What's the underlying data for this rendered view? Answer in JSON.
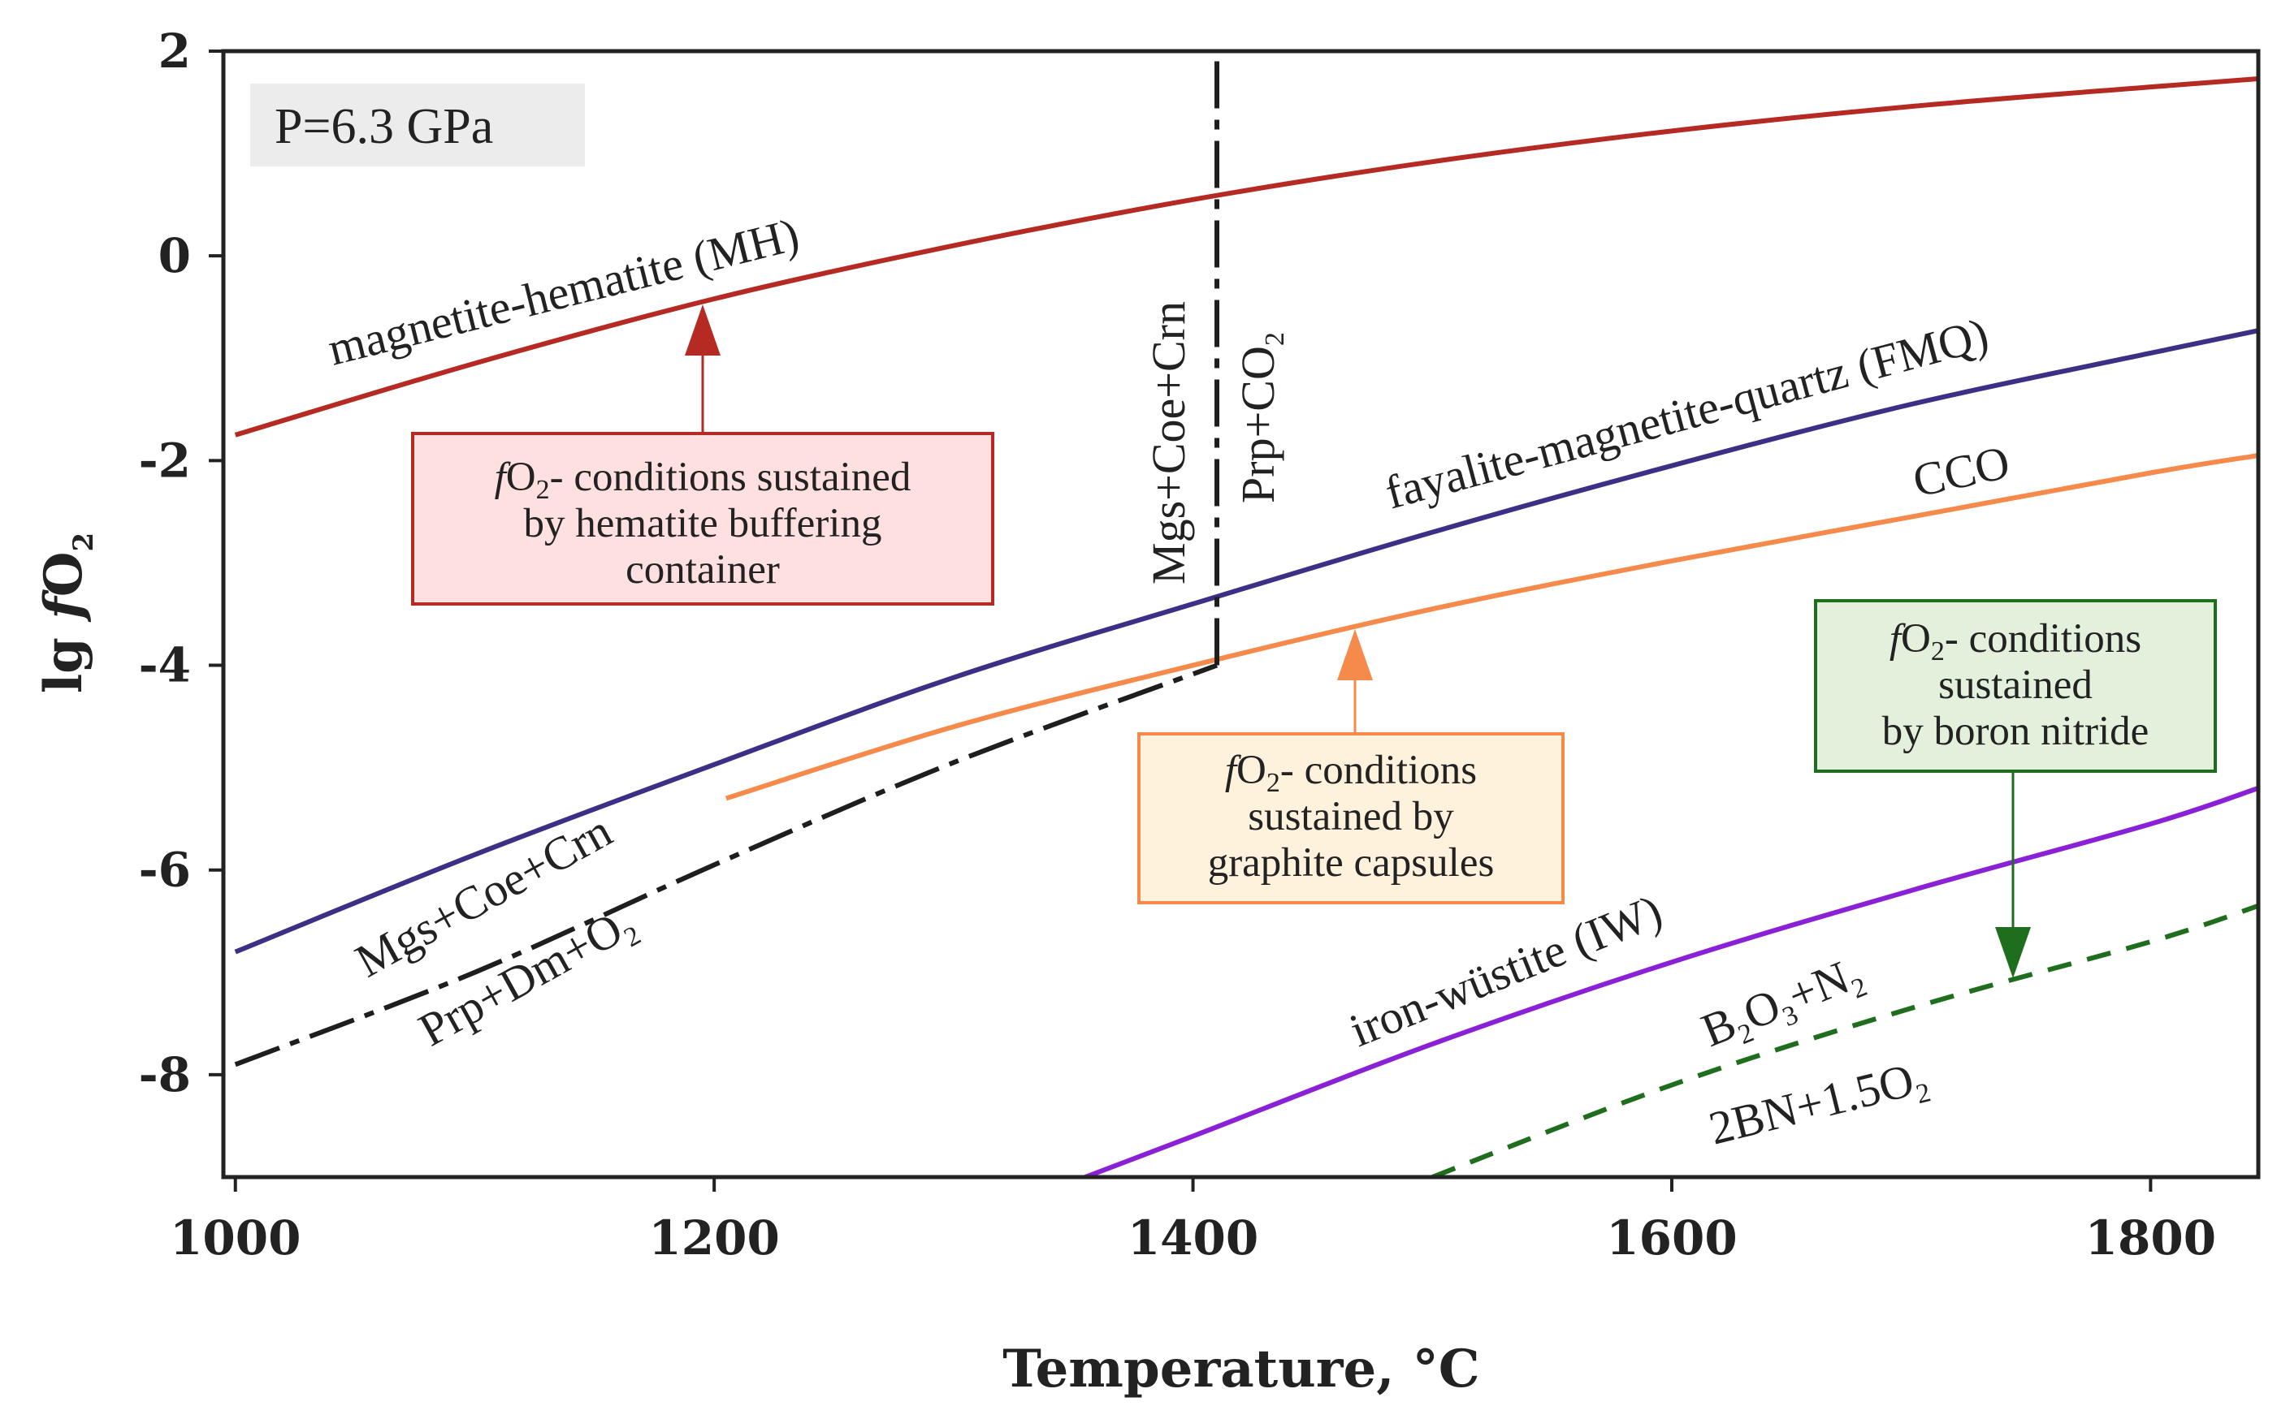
{
  "chart_data": {
    "type": "line",
    "xlabel": "Temperature, °C",
    "ylabel_prefix": "lg ",
    "ylabel_f": "f",
    "ylabel_o": "O",
    "ylabel_sub": "2",
    "xlim": [
      995,
      1845
    ],
    "ylim": [
      -9,
      2
    ],
    "xticks": [
      1000,
      1200,
      1400,
      1600,
      1800
    ],
    "yticks": [
      2,
      0,
      -2,
      -4,
      -6,
      -8
    ],
    "pressure_label": "P=6.3 GPa",
    "colors": {
      "MH": "#b52a22",
      "FMQ": "#3b2f86",
      "CCO": "#f58a4b",
      "IW": "#8a21d6",
      "BN": "#1e6e1e",
      "reaction": "#1e1e1e"
    },
    "series": [
      {
        "key": "MH",
        "name": "magnetite-hematite (MH)",
        "x": [
          1000,
          1100,
          1200,
          1300,
          1400,
          1500,
          1600,
          1700,
          1800,
          1845
        ],
        "y": [
          -1.75,
          -1.05,
          -0.42,
          0.1,
          0.55,
          0.92,
          1.22,
          1.46,
          1.65,
          1.73
        ]
      },
      {
        "key": "FMQ",
        "name": "fayalite-magnetite-quartz (FMQ)",
        "x": [
          1000,
          1100,
          1200,
          1300,
          1400,
          1500,
          1600,
          1700,
          1800,
          1845
        ],
        "y": [
          -6.8,
          -5.85,
          -4.97,
          -4.12,
          -3.4,
          -2.7,
          -2.05,
          -1.45,
          -0.95,
          -0.73
        ]
      },
      {
        "key": "CCO",
        "name": "CCO",
        "x": [
          1205,
          1300,
          1400,
          1500,
          1600,
          1700,
          1800,
          1845
        ],
        "y": [
          -5.3,
          -4.6,
          -4.0,
          -3.45,
          -2.98,
          -2.55,
          -2.12,
          -1.95
        ]
      },
      {
        "key": "IW",
        "name": "iron-wüstite (IW)",
        "x": [
          1355,
          1400,
          1500,
          1600,
          1700,
          1800,
          1845
        ],
        "y": [
          -9.0,
          -8.6,
          -7.7,
          -6.9,
          -6.2,
          -5.55,
          -5.2
        ]
      },
      {
        "key": "BN",
        "name": "B2O3+N2 / 2BN+1.5O2",
        "x": [
          1500,
          1600,
          1700,
          1800,
          1845
        ],
        "y": [
          -9.0,
          -8.1,
          -7.35,
          -6.7,
          -6.35
        ]
      },
      {
        "key": "R1",
        "name": "Mgs+Coe+Crn / Prp+Dm+O2",
        "x": [
          1000,
          1100,
          1200,
          1300,
          1410
        ],
        "y": [
          -7.9,
          -7.0,
          -5.95,
          -4.95,
          -4.0
        ]
      },
      {
        "key": "R2",
        "name": "Mgs+Coe+Crn / Prp+CO2",
        "x": [
          1410,
          1410
        ],
        "y": [
          -4.0,
          2.0
        ]
      }
    ],
    "curve_labels": {
      "mh": "magnetite-hematite (MH)",
      "fmq": "fayalite-magnetite-quartz (FMQ)",
      "cco": "CCO",
      "iw": "iron-wüstite (IW)",
      "r1_top": "Mgs+Coe+Crn",
      "r1_bottom_a": "Prp+Dm+O",
      "r1_bottom_sub": "2",
      "r2_left": "Mgs+Coe+Crn",
      "r2_right_a": "Prp+CO",
      "r2_right_sub": "2",
      "bn_top_a": "B",
      "bn_top_sub1": "2",
      "bn_top_b": "O",
      "bn_top_sub2": "3",
      "bn_top_c": "+N",
      "bn_top_sub3": "2",
      "bn_bottom_a": "2BN+1.5O",
      "bn_bottom_sub": "2"
    },
    "annotations": {
      "hematite": {
        "f": "f",
        "o": "O",
        "sub": "2",
        "line1_rest": "- conditions sustained",
        "line2": "by hematite buffering",
        "line3": "container"
      },
      "graphite": {
        "f": "f",
        "o": "O",
        "sub": "2",
        "line1_rest": "- conditions",
        "line2": "sustained by",
        "line3": "graphite capsules"
      },
      "bn": {
        "f": "f",
        "o": "O",
        "sub": "2",
        "line1_rest": "- conditions",
        "line2": "sustained",
        "line3": "by boron nitride"
      }
    }
  }
}
